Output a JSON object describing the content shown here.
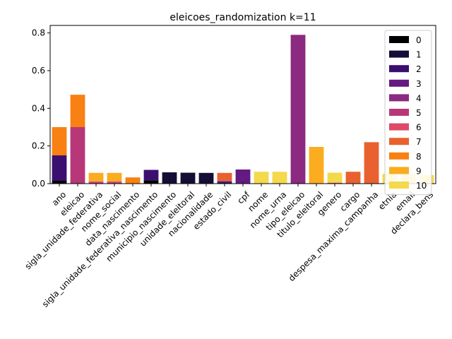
{
  "chart_data": {
    "type": "bar",
    "stacked": true,
    "title": "eleicoes_randomization k=11",
    "xlabel": "",
    "ylabel": "",
    "ylim": [
      0,
      0.84
    ],
    "yticks": [
      0.0,
      0.2,
      0.4,
      0.6,
      0.8
    ],
    "ytick_labels": [
      "0.0",
      "0.2",
      "0.4",
      "0.6",
      "0.8"
    ],
    "grid": false,
    "legend_position": "top-right",
    "categories": [
      "ano",
      "eleicao",
      "sigla_unidade_federativa",
      "nome_social",
      "data_nascimento",
      "sigla_unidade_federativa_nascimento",
      "municipio_nascimento",
      "unidade_eleitoral",
      "nacionalidade",
      "estado_civil",
      "cpf",
      "nome",
      "nome_urna",
      "tipo_eleicao",
      "titulo_eleitoral",
      "genero",
      "cargo",
      "despesa_maxima_campanha",
      "etnia",
      "email",
      "declara_bens"
    ],
    "series": [
      {
        "name": "0",
        "color": "#000004",
        "values": [
          0.015,
          0,
          0,
          0,
          0,
          0.018,
          0,
          0,
          0,
          0,
          0,
          0,
          0,
          0,
          0,
          0,
          0,
          0,
          0,
          0,
          0
        ]
      },
      {
        "name": "1",
        "color": "#140e36",
        "values": [
          0,
          0,
          0,
          0,
          0,
          0,
          0.06,
          0.058,
          0.057,
          0.005,
          0,
          0,
          0,
          0,
          0,
          0,
          0,
          0,
          0,
          0,
          0
        ]
      },
      {
        "name": "2",
        "color": "#3b0f70",
        "values": [
          0.135,
          0,
          0,
          0,
          0,
          0.055,
          0,
          0,
          0,
          0.007,
          0,
          0,
          0,
          0,
          0,
          0,
          0,
          0,
          0,
          0,
          0
        ]
      },
      {
        "name": "3",
        "color": "#641a80",
        "values": [
          0,
          0,
          0,
          0,
          0,
          0,
          0,
          0,
          0,
          0,
          0.075,
          0,
          0,
          0,
          0,
          0,
          0,
          0,
          0,
          0,
          0
        ]
      },
      {
        "name": "4",
        "color": "#8c2981",
        "values": [
          0,
          0,
          0,
          0,
          0,
          0,
          0,
          0,
          0,
          0,
          0,
          0,
          0,
          0.79,
          0,
          0,
          0,
          0,
          0,
          0,
          0
        ]
      },
      {
        "name": "5",
        "color": "#b73779",
        "values": [
          0,
          0.3,
          0.006,
          0.006,
          0,
          0,
          0,
          0,
          0,
          0,
          0,
          0,
          0,
          0,
          0,
          0,
          0,
          0,
          0,
          0,
          0
        ]
      },
      {
        "name": "6",
        "color": "#de4968",
        "values": [
          0,
          0,
          0.006,
          0.006,
          0,
          0,
          0,
          0,
          0,
          0.005,
          0,
          0,
          0,
          0,
          0,
          0.005,
          0,
          0,
          0,
          0,
          0
        ]
      },
      {
        "name": "7",
        "color": "#e8612f",
        "values": [
          0,
          0,
          0,
          0,
          0,
          0,
          0,
          0,
          0,
          0.04,
          0,
          0,
          0,
          0,
          0,
          0,
          0.063,
          0.22,
          0,
          0,
          0
        ]
      },
      {
        "name": "8",
        "color": "#f98013",
        "values": [
          0.15,
          0.172,
          0,
          0,
          0.033,
          0,
          0,
          0,
          0,
          0,
          0,
          0,
          0,
          0,
          0,
          0,
          0,
          0,
          0,
          0,
          0
        ]
      },
      {
        "name": "9",
        "color": "#fbac1f",
        "values": [
          0,
          0,
          0.045,
          0.045,
          0,
          0,
          0,
          0,
          0,
          0,
          0,
          0,
          0,
          0,
          0.195,
          0,
          0,
          0,
          0,
          0,
          0
        ]
      },
      {
        "name": "10",
        "color": "#f3d94b",
        "values": [
          0,
          0,
          0,
          0,
          0,
          0,
          0,
          0,
          0,
          0,
          0,
          0.063,
          0.063,
          0,
          0,
          0.053,
          0,
          0,
          0.052,
          0.052,
          0.045
        ]
      }
    ]
  }
}
